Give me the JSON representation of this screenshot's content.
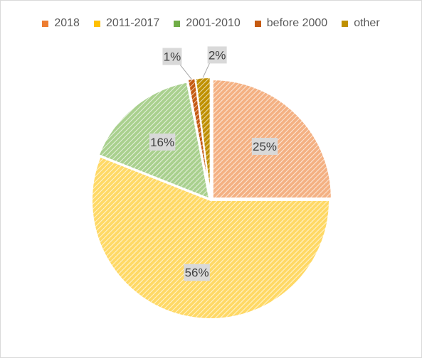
{
  "chart_data": {
    "type": "pie",
    "title": "",
    "categories": [
      "2018",
      "2011-2017",
      "2001-2010",
      "before 2000",
      "other"
    ],
    "values": [
      25,
      56,
      16,
      1,
      2
    ],
    "labels": [
      "25%",
      "56%",
      "16%",
      "1%",
      "2%"
    ],
    "colors": [
      "#f4b183",
      "#ffd966",
      "#a9d08e",
      "#c55a11",
      "#bf9000"
    ],
    "legend_position": "top"
  }
}
